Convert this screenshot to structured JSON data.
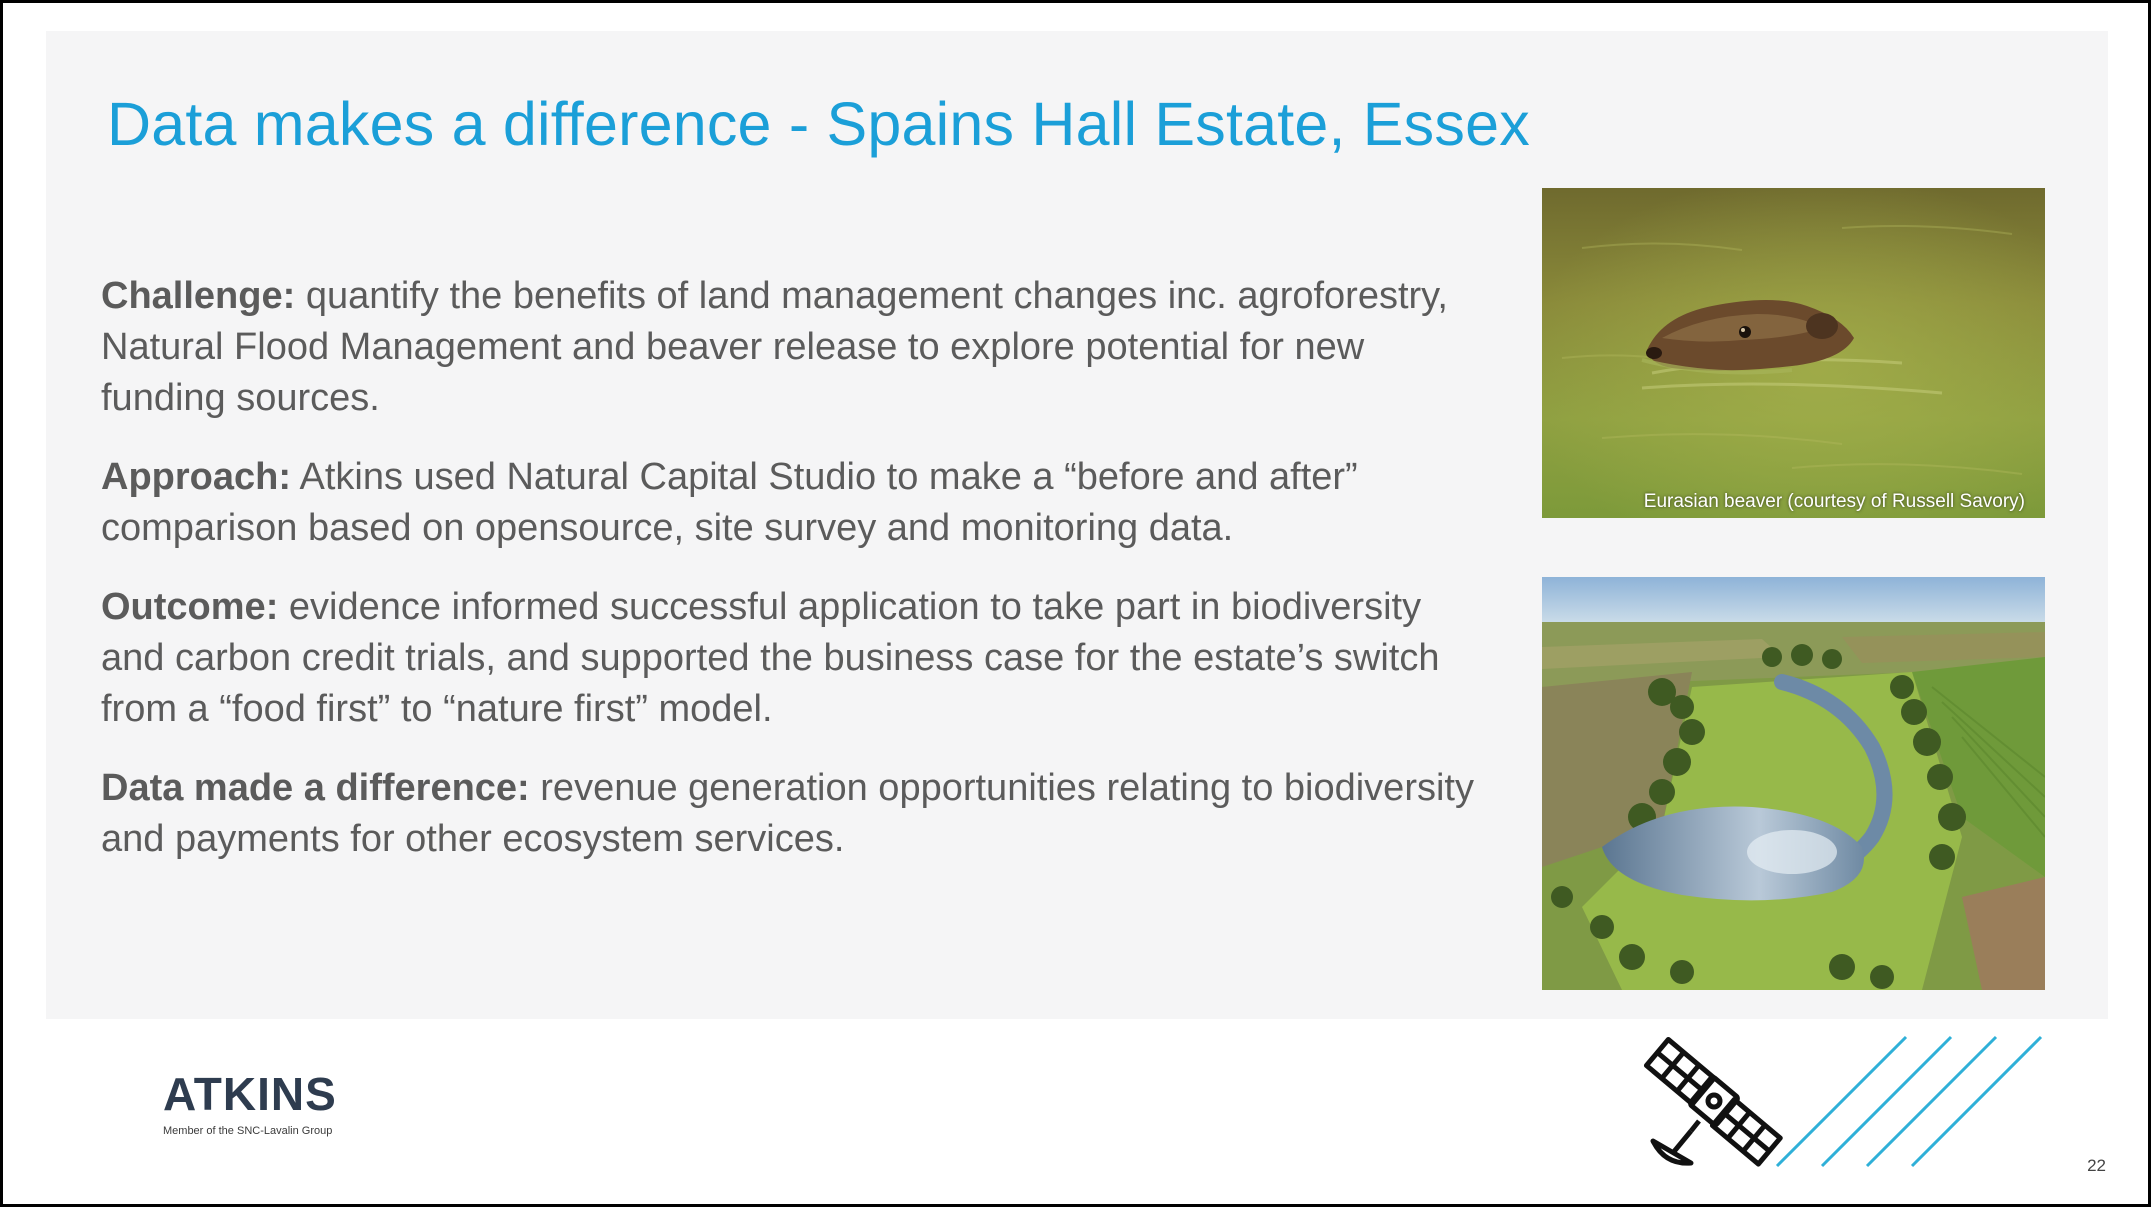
{
  "slide": {
    "title": "Data makes a difference - Spains Hall Estate, Essex",
    "paragraphs": [
      {
        "label": "Challenge:",
        "text": "quantify the benefits of land management changes inc. agroforestry, Natural Flood Management and beaver release to explore potential for new funding sources."
      },
      {
        "label": "Approach:",
        "text": "Atkins used Natural Capital Studio to make a “before and after” comparison based on opensource, site survey and monitoring data."
      },
      {
        "label": "Outcome:",
        "text": "evidence informed successful application to take part in biodiversity and carbon credit trials, and supported the business case for the estate’s switch from a “food first” to “nature first” model."
      },
      {
        "label": "Data made a difference:",
        "text": "revenue generation opportunities relating to biodiversity and payments for other ecosystem services."
      }
    ],
    "images": {
      "beaver_caption": "Eurasian beaver (courtesy of Russell Savory)"
    },
    "logo": {
      "wordmark": "ATKINS",
      "tagline": "Member of the SNC-Lavalin Group"
    },
    "page_number": "22"
  },
  "colors": {
    "title": "#1b9fd8",
    "body_text": "#5b5b5b",
    "panel": "#f5f5f6",
    "accent_lines": "#2fb0d8",
    "logo": "#2e3c4f"
  },
  "icons": {
    "satellite": "satellite-icon",
    "stripes": "diagonal-lines-decoration"
  }
}
